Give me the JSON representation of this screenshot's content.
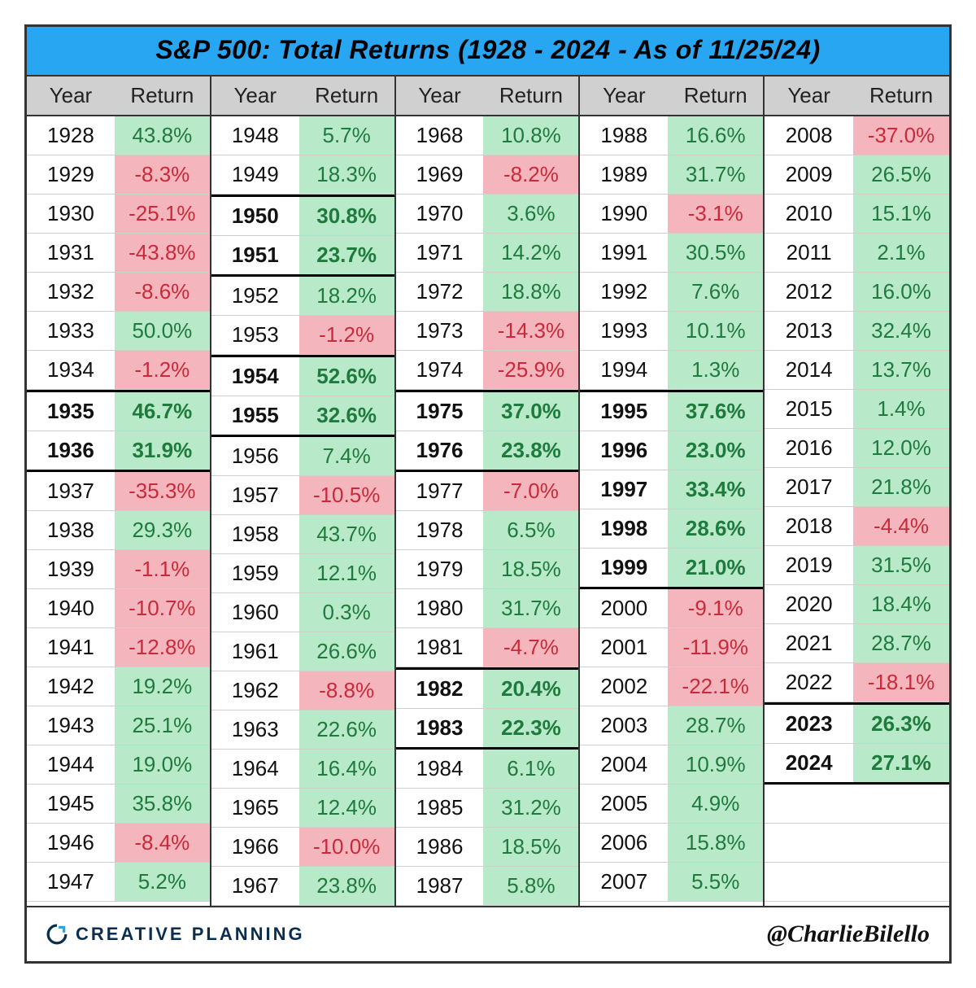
{
  "title": "S&P 500: Total Returns (1928 - 2024 - As of 11/25/24)",
  "column_headers": {
    "year": "Year",
    "return": "Return"
  },
  "styling": {
    "type": "table",
    "border_color": "#333333",
    "title_bg": "#29a6f2",
    "title_fontsize": 32,
    "title_italic": true,
    "col_header_bg": "#d0d0d0",
    "positive_bg": "#b8e9c8",
    "negative_bg": "#f5b5bd",
    "positive_text": "#1f7a3d",
    "negative_text": "#c92a3a",
    "cell_bg": "#ffffff",
    "cell_fontsize": 26,
    "columns_per_group": 2,
    "groups": 5,
    "rows_per_group": 20,
    "bold_rows_meaning": "back-to-back years both >20%"
  },
  "columns": [
    [
      {
        "year": "1928",
        "return": "43.8%",
        "sign": "pos"
      },
      {
        "year": "1929",
        "return": "-8.3%",
        "sign": "neg"
      },
      {
        "year": "1930",
        "return": "-25.1%",
        "sign": "neg"
      },
      {
        "year": "1931",
        "return": "-43.8%",
        "sign": "neg"
      },
      {
        "year": "1932",
        "return": "-8.6%",
        "sign": "neg"
      },
      {
        "year": "1933",
        "return": "50.0%",
        "sign": "pos"
      },
      {
        "year": "1934",
        "return": "-1.2%",
        "sign": "neg"
      },
      {
        "year": "1935",
        "return": "46.7%",
        "sign": "pos",
        "bold": true,
        "bold_top": true
      },
      {
        "year": "1936",
        "return": "31.9%",
        "sign": "pos",
        "bold": true,
        "bold_bottom": true
      },
      {
        "year": "1937",
        "return": "-35.3%",
        "sign": "neg"
      },
      {
        "year": "1938",
        "return": "29.3%",
        "sign": "pos"
      },
      {
        "year": "1939",
        "return": "-1.1%",
        "sign": "neg"
      },
      {
        "year": "1940",
        "return": "-10.7%",
        "sign": "neg"
      },
      {
        "year": "1941",
        "return": "-12.8%",
        "sign": "neg"
      },
      {
        "year": "1942",
        "return": "19.2%",
        "sign": "pos"
      },
      {
        "year": "1943",
        "return": "25.1%",
        "sign": "pos"
      },
      {
        "year": "1944",
        "return": "19.0%",
        "sign": "pos"
      },
      {
        "year": "1945",
        "return": "35.8%",
        "sign": "pos"
      },
      {
        "year": "1946",
        "return": "-8.4%",
        "sign": "neg"
      },
      {
        "year": "1947",
        "return": "5.2%",
        "sign": "pos"
      }
    ],
    [
      {
        "year": "1948",
        "return": "5.7%",
        "sign": "pos"
      },
      {
        "year": "1949",
        "return": "18.3%",
        "sign": "pos"
      },
      {
        "year": "1950",
        "return": "30.8%",
        "sign": "pos",
        "bold": true,
        "bold_top": true
      },
      {
        "year": "1951",
        "return": "23.7%",
        "sign": "pos",
        "bold": true,
        "bold_bottom": true
      },
      {
        "year": "1952",
        "return": "18.2%",
        "sign": "pos"
      },
      {
        "year": "1953",
        "return": "-1.2%",
        "sign": "neg"
      },
      {
        "year": "1954",
        "return": "52.6%",
        "sign": "pos",
        "bold": true,
        "bold_top": true
      },
      {
        "year": "1955",
        "return": "32.6%",
        "sign": "pos",
        "bold": true,
        "bold_bottom": true
      },
      {
        "year": "1956",
        "return": "7.4%",
        "sign": "pos"
      },
      {
        "year": "1957",
        "return": "-10.5%",
        "sign": "neg"
      },
      {
        "year": "1958",
        "return": "43.7%",
        "sign": "pos"
      },
      {
        "year": "1959",
        "return": "12.1%",
        "sign": "pos"
      },
      {
        "year": "1960",
        "return": "0.3%",
        "sign": "pos"
      },
      {
        "year": "1961",
        "return": "26.6%",
        "sign": "pos"
      },
      {
        "year": "1962",
        "return": "-8.8%",
        "sign": "neg"
      },
      {
        "year": "1963",
        "return": "22.6%",
        "sign": "pos"
      },
      {
        "year": "1964",
        "return": "16.4%",
        "sign": "pos"
      },
      {
        "year": "1965",
        "return": "12.4%",
        "sign": "pos"
      },
      {
        "year": "1966",
        "return": "-10.0%",
        "sign": "neg"
      },
      {
        "year": "1967",
        "return": "23.8%",
        "sign": "pos"
      }
    ],
    [
      {
        "year": "1968",
        "return": "10.8%",
        "sign": "pos"
      },
      {
        "year": "1969",
        "return": "-8.2%",
        "sign": "neg"
      },
      {
        "year": "1970",
        "return": "3.6%",
        "sign": "pos"
      },
      {
        "year": "1971",
        "return": "14.2%",
        "sign": "pos"
      },
      {
        "year": "1972",
        "return": "18.8%",
        "sign": "pos"
      },
      {
        "year": "1973",
        "return": "-14.3%",
        "sign": "neg"
      },
      {
        "year": "1974",
        "return": "-25.9%",
        "sign": "neg"
      },
      {
        "year": "1975",
        "return": "37.0%",
        "sign": "pos",
        "bold": true,
        "bold_top": true
      },
      {
        "year": "1976",
        "return": "23.8%",
        "sign": "pos",
        "bold": true,
        "bold_bottom": true
      },
      {
        "year": "1977",
        "return": "-7.0%",
        "sign": "neg"
      },
      {
        "year": "1978",
        "return": "6.5%",
        "sign": "pos"
      },
      {
        "year": "1979",
        "return": "18.5%",
        "sign": "pos"
      },
      {
        "year": "1980",
        "return": "31.7%",
        "sign": "pos"
      },
      {
        "year": "1981",
        "return": "-4.7%",
        "sign": "neg"
      },
      {
        "year": "1982",
        "return": "20.4%",
        "sign": "pos",
        "bold": true,
        "bold_top": true
      },
      {
        "year": "1983",
        "return": "22.3%",
        "sign": "pos",
        "bold": true,
        "bold_bottom": true
      },
      {
        "year": "1984",
        "return": "6.1%",
        "sign": "pos"
      },
      {
        "year": "1985",
        "return": "31.2%",
        "sign": "pos"
      },
      {
        "year": "1986",
        "return": "18.5%",
        "sign": "pos"
      },
      {
        "year": "1987",
        "return": "5.8%",
        "sign": "pos"
      }
    ],
    [
      {
        "year": "1988",
        "return": "16.6%",
        "sign": "pos"
      },
      {
        "year": "1989",
        "return": "31.7%",
        "sign": "pos"
      },
      {
        "year": "1990",
        "return": "-3.1%",
        "sign": "neg"
      },
      {
        "year": "1991",
        "return": "30.5%",
        "sign": "pos"
      },
      {
        "year": "1992",
        "return": "7.6%",
        "sign": "pos"
      },
      {
        "year": "1993",
        "return": "10.1%",
        "sign": "pos"
      },
      {
        "year": "1994",
        "return": "1.3%",
        "sign": "pos"
      },
      {
        "year": "1995",
        "return": "37.6%",
        "sign": "pos",
        "bold": true,
        "bold_top": true
      },
      {
        "year": "1996",
        "return": "23.0%",
        "sign": "pos",
        "bold": true
      },
      {
        "year": "1997",
        "return": "33.4%",
        "sign": "pos",
        "bold": true
      },
      {
        "year": "1998",
        "return": "28.6%",
        "sign": "pos",
        "bold": true
      },
      {
        "year": "1999",
        "return": "21.0%",
        "sign": "pos",
        "bold": true,
        "bold_bottom": true
      },
      {
        "year": "2000",
        "return": "-9.1%",
        "sign": "neg"
      },
      {
        "year": "2001",
        "return": "-11.9%",
        "sign": "neg"
      },
      {
        "year": "2002",
        "return": "-22.1%",
        "sign": "neg"
      },
      {
        "year": "2003",
        "return": "28.7%",
        "sign": "pos"
      },
      {
        "year": "2004",
        "return": "10.9%",
        "sign": "pos"
      },
      {
        "year": "2005",
        "return": "4.9%",
        "sign": "pos"
      },
      {
        "year": "2006",
        "return": "15.8%",
        "sign": "pos"
      },
      {
        "year": "2007",
        "return": "5.5%",
        "sign": "pos"
      }
    ],
    [
      {
        "year": "2008",
        "return": "-37.0%",
        "sign": "neg"
      },
      {
        "year": "2009",
        "return": "26.5%",
        "sign": "pos"
      },
      {
        "year": "2010",
        "return": "15.1%",
        "sign": "pos"
      },
      {
        "year": "2011",
        "return": "2.1%",
        "sign": "pos"
      },
      {
        "year": "2012",
        "return": "16.0%",
        "sign": "pos"
      },
      {
        "year": "2013",
        "return": "32.4%",
        "sign": "pos"
      },
      {
        "year": "2014",
        "return": "13.7%",
        "sign": "pos"
      },
      {
        "year": "2015",
        "return": "1.4%",
        "sign": "pos"
      },
      {
        "year": "2016",
        "return": "12.0%",
        "sign": "pos"
      },
      {
        "year": "2017",
        "return": "21.8%",
        "sign": "pos"
      },
      {
        "year": "2018",
        "return": "-4.4%",
        "sign": "neg"
      },
      {
        "year": "2019",
        "return": "31.5%",
        "sign": "pos"
      },
      {
        "year": "2020",
        "return": "18.4%",
        "sign": "pos"
      },
      {
        "year": "2021",
        "return": "28.7%",
        "sign": "pos"
      },
      {
        "year": "2022",
        "return": "-18.1%",
        "sign": "neg"
      },
      {
        "year": "2023",
        "return": "26.3%",
        "sign": "pos",
        "bold": true,
        "bold_top": true
      },
      {
        "year": "2024",
        "return": "27.1%",
        "sign": "pos",
        "bold": true,
        "bold_bottom": true
      },
      {
        "empty": true
      },
      {
        "empty": true
      },
      {
        "empty": true
      }
    ]
  ],
  "footer": {
    "brand": "CREATIVE PLANNING",
    "brand_color": "#0b2e4f",
    "handle": "@CharlieBilello"
  }
}
